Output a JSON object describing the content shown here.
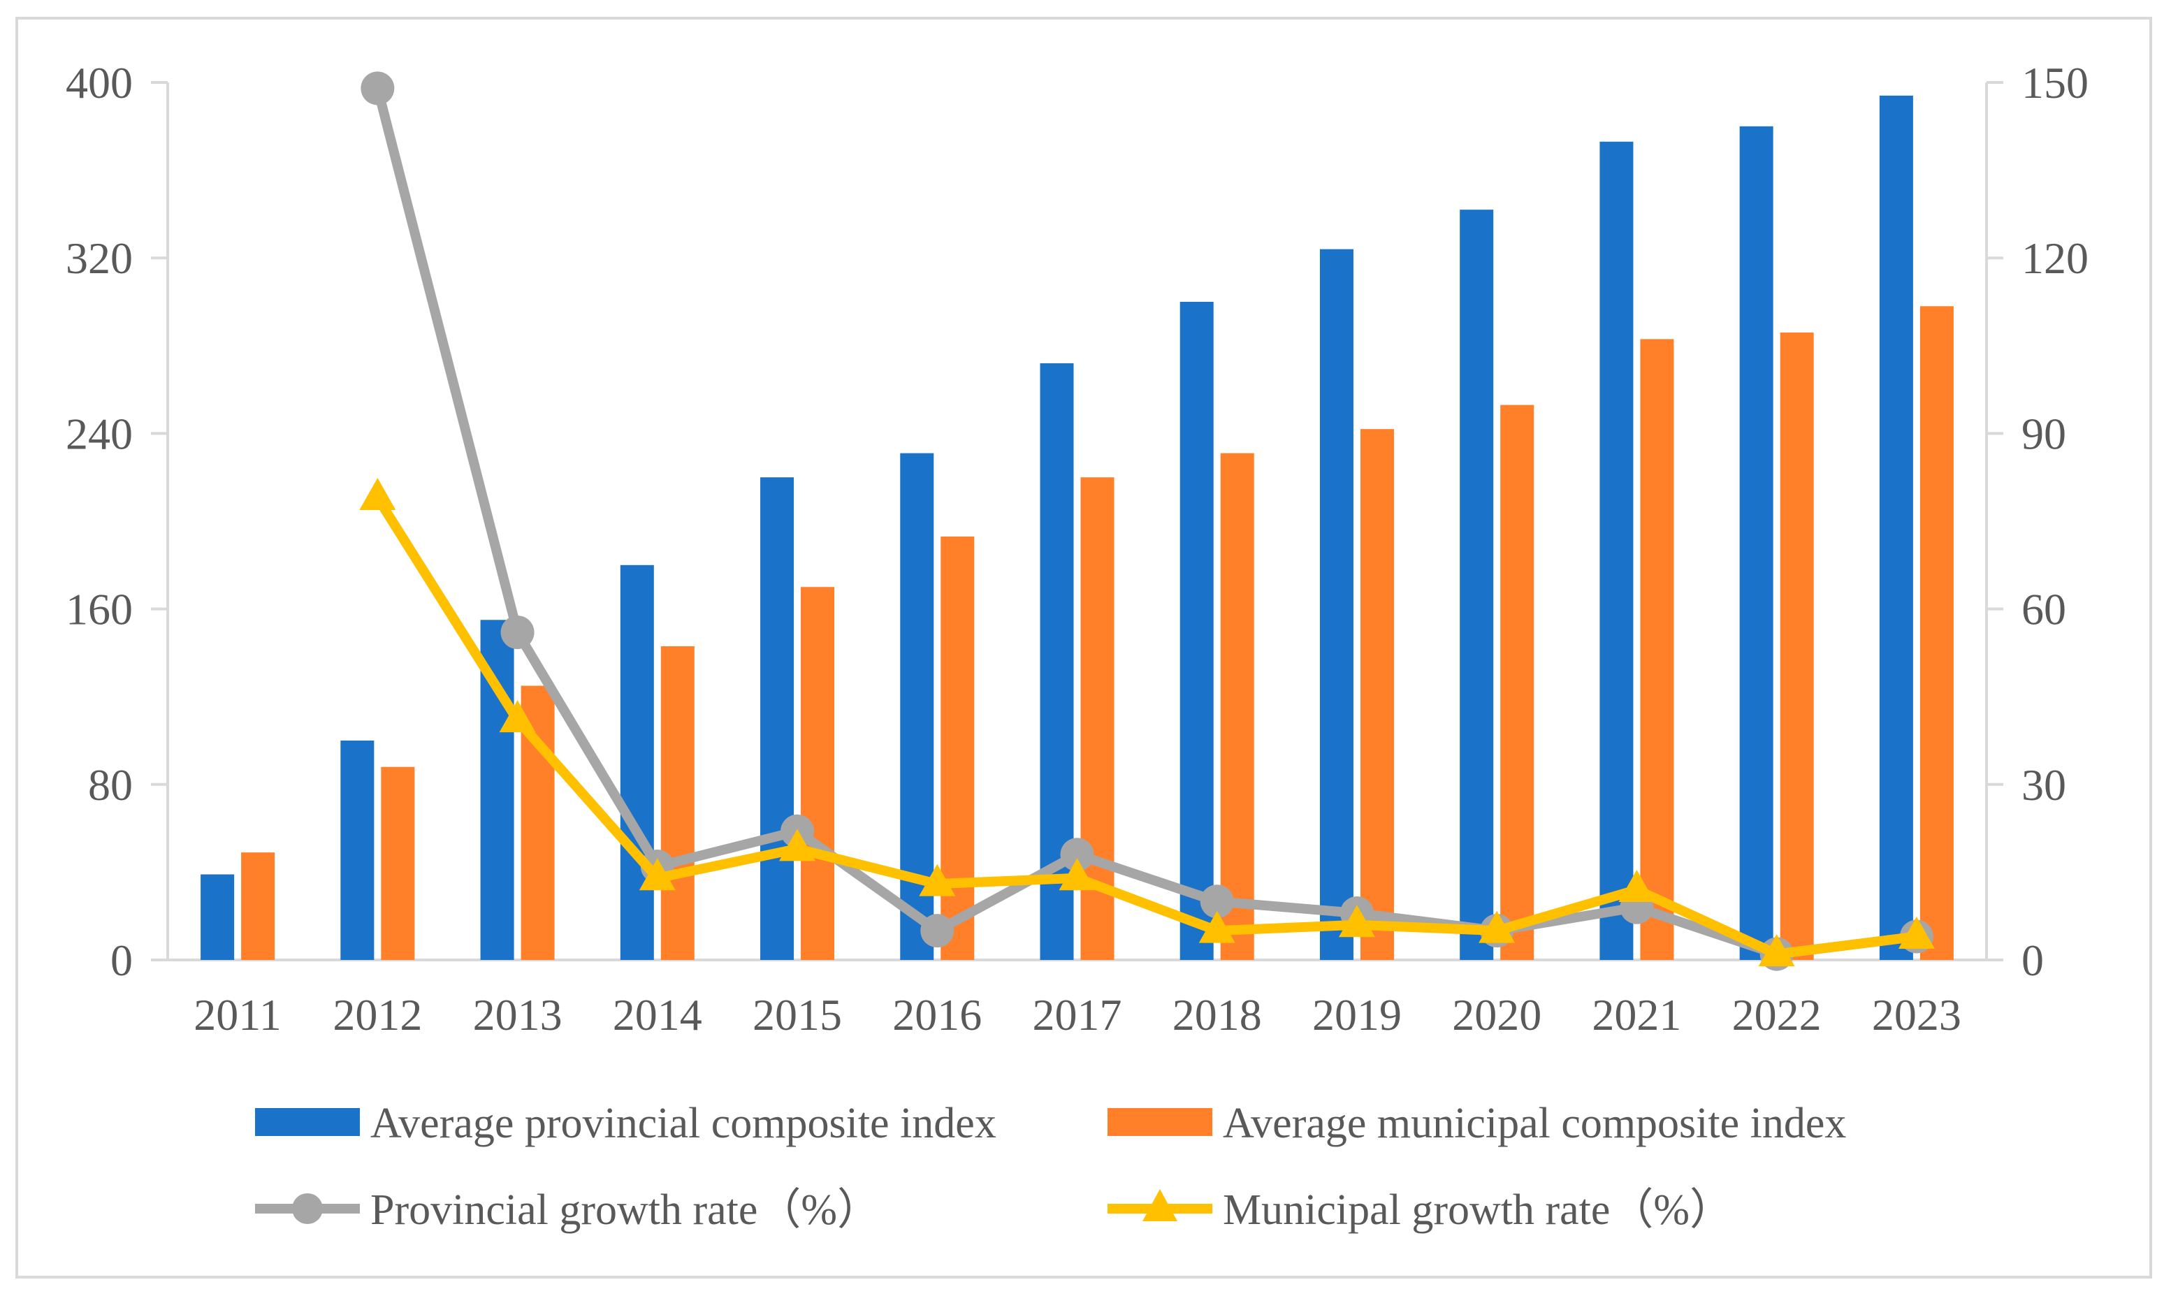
{
  "chart_data": {
    "type": "bar-line-combo",
    "title": "",
    "categories": [
      "2011",
      "2012",
      "2013",
      "2014",
      "2015",
      "2016",
      "2017",
      "2018",
      "2019",
      "2020",
      "2021",
      "2022",
      "2023"
    ],
    "left_axis": {
      "min": 0,
      "max": 400,
      "ticks": [
        "0",
        "80",
        "160",
        "240",
        "320",
        "400"
      ],
      "tick_values": [
        0,
        80,
        160,
        240,
        320,
        400
      ]
    },
    "right_axis": {
      "min": 0,
      "max": 150,
      "ticks": [
        "0",
        "30",
        "60",
        "90",
        "120",
        "150"
      ],
      "tick_values": [
        0,
        30,
        60,
        90,
        120,
        150
      ]
    },
    "grid": false,
    "legend_position": "bottom",
    "series": [
      {
        "name": "Average provincial composite index",
        "kind": "bar",
        "axis": "left",
        "color": "#1a73c9",
        "values": [
          39,
          100,
          155,
          180,
          220,
          231,
          272,
          300,
          324,
          342,
          373,
          380,
          394
        ]
      },
      {
        "name": "Average municipal composite index",
        "kind": "bar",
        "axis": "left",
        "color": "#ff8028",
        "values": [
          49,
          88,
          125,
          143,
          170,
          193,
          220,
          231,
          242,
          253,
          283,
          286,
          298
        ]
      },
      {
        "name": "Provincial growth rate（%）",
        "kind": "line",
        "marker": "circle",
        "axis": "right",
        "color": "#a6a6a6",
        "values": [
          null,
          149,
          56,
          16,
          22,
          5,
          18,
          10,
          8,
          5,
          9,
          1,
          4
        ]
      },
      {
        "name": "Municipal growth rate（%）",
        "kind": "line",
        "marker": "triangle",
        "axis": "right",
        "color": "#ffc000",
        "values": [
          null,
          79,
          41,
          14,
          19,
          13,
          14,
          5,
          6,
          5,
          12,
          1,
          4
        ]
      }
    ]
  }
}
